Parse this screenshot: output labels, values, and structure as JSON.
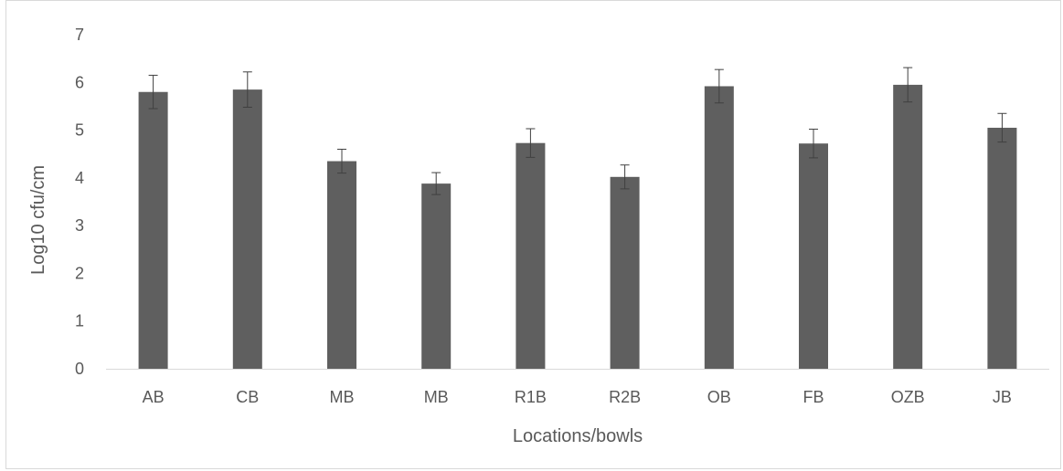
{
  "chart_data": {
    "type": "bar",
    "title": "",
    "xlabel": "Locations/bowls",
    "ylabel": "Log10 cfu/cm",
    "ylim": [
      0,
      7
    ],
    "yticks": [
      0,
      1,
      2,
      3,
      4,
      5,
      6,
      7
    ],
    "grid": false,
    "legend": "none",
    "categories": [
      "AB",
      "CB",
      "MB",
      "MB",
      "R1B",
      "R2B",
      "OB",
      "FB",
      "OZB",
      "JB"
    ],
    "values": [
      5.8,
      5.85,
      4.35,
      3.88,
      4.73,
      4.02,
      5.92,
      4.72,
      5.95,
      5.05
    ],
    "error": [
      0.35,
      0.37,
      0.25,
      0.23,
      0.3,
      0.25,
      0.35,
      0.3,
      0.36,
      0.3
    ],
    "bar_color": "#5f5f5f",
    "axis_color": "#d9d9d9",
    "text_color": "#595959"
  }
}
